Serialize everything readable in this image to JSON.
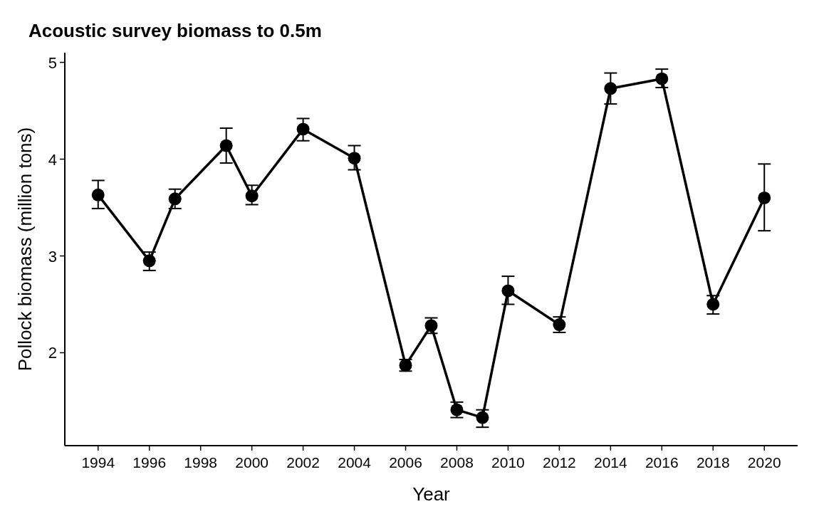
{
  "chart_data": {
    "type": "line",
    "title": "Acoustic survey biomass to 0.5m",
    "xlabel": "Year",
    "ylabel": "Pollock biomass (million tons)",
    "x": [
      1994,
      1996,
      1997,
      1999,
      2000,
      2002,
      2004,
      2006,
      2007,
      2008,
      2009,
      2010,
      2012,
      2014,
      2016,
      2018,
      2020
    ],
    "series": [
      {
        "color": "#000000",
        "values": [
          3.63,
          2.95,
          3.59,
          4.14,
          3.62,
          4.31,
          4.01,
          1.87,
          2.28,
          1.41,
          1.33,
          2.64,
          2.29,
          4.73,
          4.83,
          2.5,
          3.6
        ],
        "errors": [
          [
            3.49,
            3.78
          ],
          [
            2.85,
            3.04
          ],
          [
            3.49,
            3.69
          ],
          [
            3.96,
            4.32
          ],
          [
            3.53,
            3.73
          ],
          [
            4.19,
            4.42
          ],
          [
            3.89,
            4.14
          ],
          [
            1.81,
            1.93
          ],
          [
            2.2,
            2.36
          ],
          [
            1.33,
            1.49
          ],
          [
            1.23,
            1.41
          ],
          [
            2.5,
            2.79
          ],
          [
            2.21,
            2.37
          ],
          [
            4.57,
            4.89
          ],
          [
            4.74,
            4.93
          ],
          [
            2.4,
            2.59
          ],
          [
            3.26,
            3.95
          ]
        ]
      }
    ],
    "xlim": [
      1992.7,
      2021.3
    ],
    "xticks": [
      1994,
      1996,
      1998,
      2000,
      2002,
      2004,
      2006,
      2008,
      2010,
      2012,
      2014,
      2016,
      2018,
      2020
    ],
    "ylim": [
      1.04,
      5.1
    ],
    "yticks": [
      2,
      3,
      4,
      5
    ],
    "marker": "circle",
    "line_style": "solid"
  }
}
